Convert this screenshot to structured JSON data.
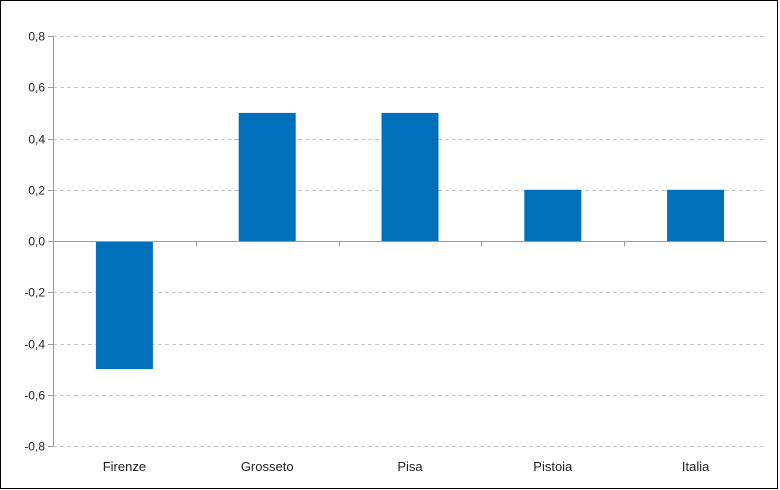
{
  "chart_data": {
    "type": "bar",
    "categories": [
      "Firenze",
      "Grosseto",
      "Pisa",
      "Pistoia",
      "Italia"
    ],
    "values": [
      -0.5,
      0.5,
      0.5,
      0.2,
      0.2
    ],
    "ylim": [
      -0.8,
      0.8
    ],
    "yticks": [
      0.8,
      0.6,
      0.4,
      0.2,
      0.0,
      -0.2,
      -0.4,
      -0.6,
      -0.8
    ],
    "ytick_labels": [
      "0,8",
      "0,6",
      "0,4",
      "0,2",
      "0,0",
      "-0,2",
      "-0,4",
      "-0,6",
      "-0,8"
    ],
    "grid": true,
    "bar_color": "#0070BA",
    "grid_color": "#C8C8C8",
    "axis_color": "#999999"
  }
}
